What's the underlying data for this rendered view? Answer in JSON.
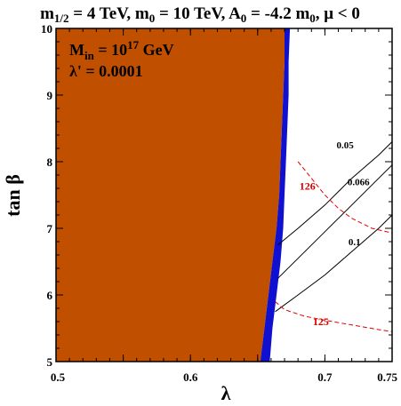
{
  "chart_data": {
    "type": "contour",
    "title": "m1/2 = 4 TeV, m0 = 10 TeV, A0 = -4.2 m0, μ < 0",
    "title_parts": {
      "m": "m",
      "half": "1/2",
      "eq1": " = 4 TeV, m",
      "zero1": "0",
      "eq2": " = 10 TeV, A",
      "zero2": "0",
      "eq3": " = -4.2 m",
      "zero3": "0",
      "mu": ", μ < 0"
    },
    "xlabel": "λ",
    "ylabel": "tan β",
    "xlim": [
      0.5,
      0.75
    ],
    "ylim": [
      5,
      10
    ],
    "x_ticks": [
      0.5,
      0.6,
      0.7,
      0.75
    ],
    "x_tick_labels": [
      "0.5",
      "0.6",
      "0.7",
      "0.75"
    ],
    "y_ticks": [
      5,
      6,
      7,
      8,
      9,
      10
    ],
    "y_tick_labels": [
      "5",
      "6",
      "7",
      "8",
      "9",
      "10"
    ],
    "annotations": {
      "m_in": "M",
      "m_in_sub": "in",
      "m_in_val": " = 10",
      "m_in_exp": "17",
      "m_in_unit": " GeV",
      "lambda_prime": "λ' = 0.0001"
    },
    "colors": {
      "excluded_region": "#c04f00",
      "blue_band": "#1010d0",
      "black_contours": "#000000",
      "higgs_contours": "#e00000"
    },
    "excluded_region_boundary": [
      [
        0.652,
        5.0
      ],
      [
        0.655,
        5.5
      ],
      [
        0.658,
        6.0
      ],
      [
        0.661,
        6.5
      ],
      [
        0.664,
        7.0
      ],
      [
        0.666,
        7.5
      ],
      [
        0.667,
        8.0
      ],
      [
        0.668,
        8.5
      ],
      [
        0.669,
        9.0
      ],
      [
        0.67,
        9.5
      ],
      [
        0.67,
        10.0
      ]
    ],
    "blue_band_right": [
      [
        0.659,
        5.0
      ],
      [
        0.661,
        5.5
      ],
      [
        0.664,
        6.0
      ],
      [
        0.667,
        6.5
      ],
      [
        0.669,
        7.0
      ],
      [
        0.67,
        7.5
      ],
      [
        0.671,
        8.0
      ],
      [
        0.672,
        8.5
      ],
      [
        0.673,
        9.0
      ],
      [
        0.673,
        9.5
      ],
      [
        0.674,
        10.0
      ]
    ],
    "contours": [
      {
        "label": "0.05",
        "points": [
          [
            0.665,
            6.75
          ],
          [
            0.68,
            7.0
          ],
          [
            0.7,
            7.35
          ],
          [
            0.72,
            7.75
          ],
          [
            0.74,
            8.1
          ],
          [
            0.75,
            8.3
          ]
        ]
      },
      {
        "label": "0.066",
        "points": [
          [
            0.665,
            6.25
          ],
          [
            0.68,
            6.55
          ],
          [
            0.7,
            6.95
          ],
          [
            0.72,
            7.35
          ],
          [
            0.74,
            7.75
          ],
          [
            0.75,
            7.95
          ]
        ]
      },
      {
        "label": "0.1",
        "points": [
          [
            0.663,
            5.75
          ],
          [
            0.68,
            6.0
          ],
          [
            0.7,
            6.3
          ],
          [
            0.72,
            6.65
          ],
          [
            0.74,
            7.0
          ],
          [
            0.75,
            7.2
          ]
        ]
      }
    ],
    "higgs_mass_contours": [
      {
        "label": "126",
        "points": [
          [
            0.68,
            8.0
          ],
          [
            0.69,
            7.75
          ],
          [
            0.7,
            7.5
          ],
          [
            0.71,
            7.3
          ],
          [
            0.72,
            7.15
          ],
          [
            0.735,
            7.0
          ],
          [
            0.75,
            6.93
          ]
        ]
      },
      {
        "label": "125",
        "points": [
          [
            0.663,
            5.9
          ],
          [
            0.67,
            5.78
          ],
          [
            0.685,
            5.68
          ],
          [
            0.7,
            5.62
          ],
          [
            0.72,
            5.55
          ],
          [
            0.74,
            5.48
          ],
          [
            0.75,
            5.45
          ]
        ]
      }
    ],
    "contour_label_positions": [
      {
        "label": "0.05",
        "x": 0.715,
        "y": 8.2
      },
      {
        "label": "0.066",
        "x": 0.725,
        "y": 7.65
      },
      {
        "label": "0.1",
        "x": 0.722,
        "y": 6.75
      },
      {
        "label": "126",
        "x": 0.687,
        "y": 7.58
      },
      {
        "label": "125",
        "x": 0.697,
        "y": 5.55
      }
    ]
  }
}
